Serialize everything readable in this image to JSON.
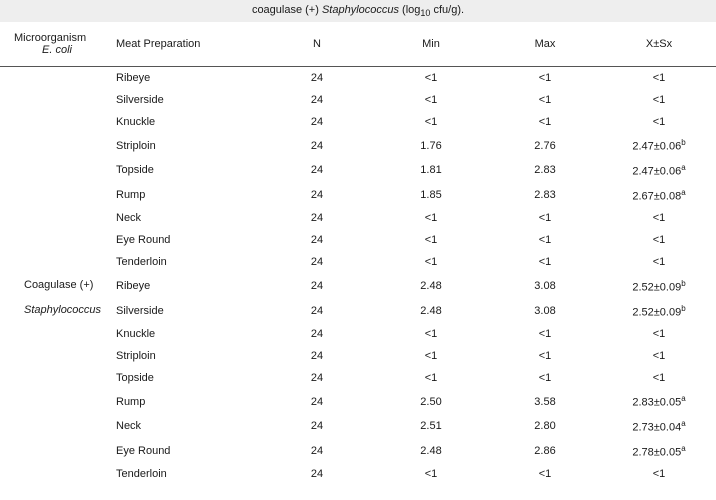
{
  "caption_html": "coagulase (+) <i>Staphylococcus</i> (log<span class=\"sub\">10</span> cfu/g).",
  "columns": {
    "micro": "Microorganism",
    "prep": "Meat Preparation",
    "n": "N",
    "min": "Min",
    "max": "Max",
    "xsx": "X±Sx"
  },
  "groups": [
    {
      "header_lines": [
        "",
        "E. coli"
      ],
      "header_italic": [
        false,
        true
      ],
      "rows": [
        {
          "prep": "Ribeye",
          "n": "24",
          "min": "<1",
          "max": "<1",
          "xsx": "<1",
          "sup": ""
        },
        {
          "prep": "Silverside",
          "n": "24",
          "min": "<1",
          "max": "<1",
          "xsx": "<1",
          "sup": ""
        },
        {
          "prep": "Knuckle",
          "n": "24",
          "min": "<1",
          "max": "<1",
          "xsx": "<1",
          "sup": ""
        },
        {
          "prep": "Striploin",
          "n": "24",
          "min": "1.76",
          "max": "2.76",
          "xsx": "2.47±0.06",
          "sup": "b"
        },
        {
          "prep": "Topside",
          "n": "24",
          "min": "1.81",
          "max": "2.83",
          "xsx": "2.47±0.06",
          "sup": "a"
        },
        {
          "prep": "Rump",
          "n": "24",
          "min": "1.85",
          "max": "2.83",
          "xsx": "2.67±0.08",
          "sup": "a"
        },
        {
          "prep": "Neck",
          "n": "24",
          "min": "<1",
          "max": "<1",
          "xsx": "<1",
          "sup": ""
        },
        {
          "prep": "Eye Round",
          "n": "24",
          "min": "<1",
          "max": "<1",
          "xsx": "<1",
          "sup": ""
        },
        {
          "prep": "Tenderloin",
          "n": "24",
          "min": "<1",
          "max": "<1",
          "xsx": "<1",
          "sup": ""
        }
      ]
    },
    {
      "header_lines": [
        "Coagulase (+)",
        "Staphylococcus"
      ],
      "header_italic": [
        false,
        true
      ],
      "rows": [
        {
          "prep": "Ribeye",
          "n": "24",
          "min": "2.48",
          "max": "3.08",
          "xsx": "2.52±0.09",
          "sup": "b"
        },
        {
          "prep": "Silverside",
          "n": "24",
          "min": "2.48",
          "max": "3.08",
          "xsx": "2.52±0.09",
          "sup": "b"
        },
        {
          "prep": "Knuckle",
          "n": "24",
          "min": "<1",
          "max": "<1",
          "xsx": "<1",
          "sup": ""
        },
        {
          "prep": "Striploin",
          "n": "24",
          "min": "<1",
          "max": "<1",
          "xsx": "<1",
          "sup": ""
        },
        {
          "prep": "Topside",
          "n": "24",
          "min": "<1",
          "max": "<1",
          "xsx": "<1",
          "sup": ""
        },
        {
          "prep": "Rump",
          "n": "24",
          "min": "2.50",
          "max": "3.58",
          "xsx": "2.83±0.05",
          "sup": "a"
        },
        {
          "prep": "Neck",
          "n": "24",
          "min": "2.51",
          "max": "2.80",
          "xsx": "2.73±0.04",
          "sup": "a"
        },
        {
          "prep": "Eye Round",
          "n": "24",
          "min": "2.48",
          "max": "2.86",
          "xsx": "2.78±0.05",
          "sup": "a"
        },
        {
          "prep": "Tenderloin",
          "n": "24",
          "min": "<1",
          "max": "<1",
          "xsx": "<1",
          "sup": ""
        }
      ]
    }
  ]
}
